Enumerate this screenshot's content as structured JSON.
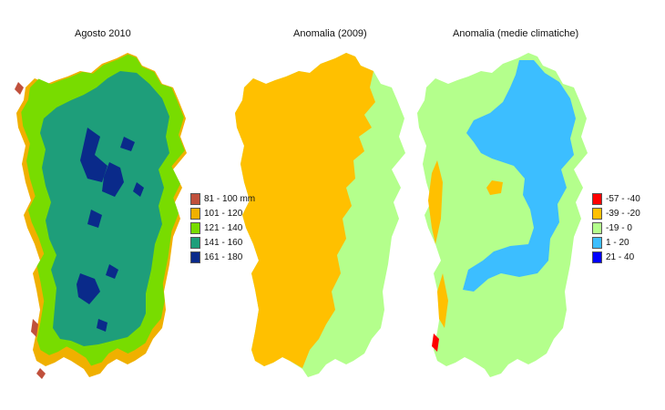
{
  "panels": [
    {
      "title": "Agosto 2010"
    },
    {
      "title": "Anomalia (2009)"
    },
    {
      "title": "Anomalia (medie climatiche)"
    }
  ],
  "legend_precip": [
    {
      "label": "81 - 100 mm",
      "color": "#c0503c"
    },
    {
      "label": "101 - 120",
      "color": "#f0b000"
    },
    {
      "label": "121 - 140",
      "color": "#78dc00"
    },
    {
      "label": "141 - 160",
      "color": "#1e9e7a"
    },
    {
      "label": "161 - 180",
      "color": "#0a2a8a"
    }
  ],
  "legend_anomaly": [
    {
      "label": "-57 - -40",
      "color": "#ff0000"
    },
    {
      "label": "-39 - -20",
      "color": "#ffc000"
    },
    {
      "label": "-19 - 0",
      "color": "#b4ff8c"
    },
    {
      "label": "1 - 20",
      "color": "#3cbeff"
    },
    {
      "label": "21 - 40",
      "color": "#0000ff"
    }
  ]
}
